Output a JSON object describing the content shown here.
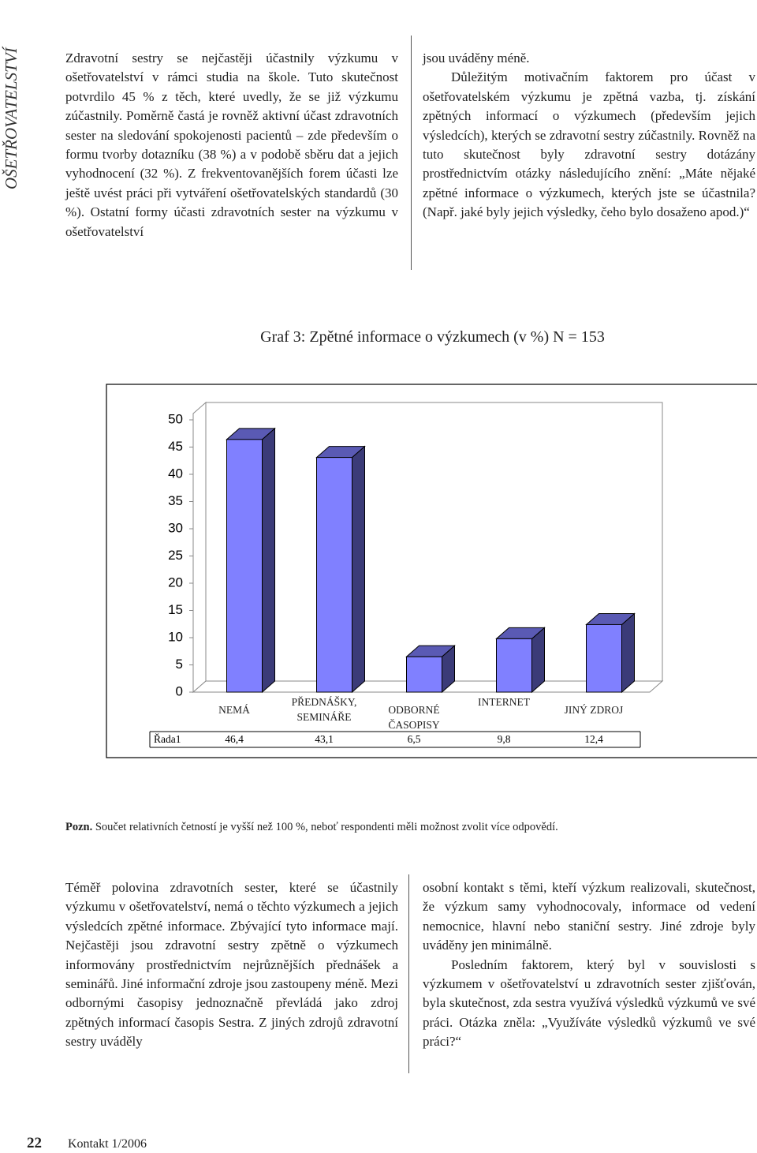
{
  "side_header": "OŠETŘOVATELSTVÍ",
  "top_left": [
    "Zdravotní sestry se nejčastěji účastnily výzkumu v ošetřovatelství v rámci studia na škole. Tuto skutečnost potvrdilo 45 % z těch, které uvedly, že se již výzkumu zúčastnily. Poměrně častá je rovněž aktivní účast zdravotních sester na sledování spokojenosti pacientů – zde především o formu tvorby dotazníku (38 %) a v podobě sběru dat a jejich vyhodnocení (32 %). Z frekventovanějších forem účasti lze ještě uvést práci při vytváření ošetřovatelských standardů (30 %). Ostatní formy účasti zdravotních sester na výzkumu v ošetřovatelství"
  ],
  "top_right": [
    "jsou uváděny méně.",
    "Důležitým motivačním faktorem pro účast v ošetřovatelském výzkumu je zpětná vazba, tj. získání zpětných informací o výzkumech (především jejich výsledcích), kterých se zdravotní sestry zúčastnily. Rovněž na tuto skutečnost byly zdravotní sestry dotázány prostřednictvím otázky následujícího znění: „Máte nějaké zpětné informace o výzkumech, kterých jste se účastnila? (Např. jaké byly jejich výsledky, čeho bylo dosaženo apod.)“"
  ],
  "chart_data": {
    "type": "bar3d",
    "title": "Graf 3: Zpětné informace o výzkumech (v %) N = 153",
    "categories": [
      "NEMÁ",
      "PŘEDNÁŠKY, SEMINÁŘE",
      "ODBORNÉ ČASOPISY",
      "INTERNET",
      "JINÝ ZDROJ"
    ],
    "series": [
      {
        "name": "Řada1",
        "color": "#8080ff",
        "values": [
          46.4,
          43.1,
          6.5,
          9.8,
          12.4
        ],
        "value_labels": [
          "46,4",
          "43,1",
          "6,5",
          "9,8",
          "12,4"
        ]
      }
    ],
    "ylim": [
      0,
      50
    ],
    "yticks": [
      0,
      5,
      10,
      15,
      20,
      25,
      30,
      35,
      40,
      45,
      50
    ]
  },
  "note": {
    "label": "Pozn.",
    "text": "Součet relativních četností je vyšší než 100 %, neboť respondenti měli možnost zvolit více odpovědí."
  },
  "bottom_left": [
    "Téměř polovina zdravotních sester, které se účastnily výzkumu v ošetřovatelství, nemá o těchto výzkumech a jejich výsledcích zpětné informace. Zbývající tyto informace mají. Nejčastěji jsou zdravotní sestry zpětně o výzkumech informovány prostřednictvím nejrůznějších přednášek a seminářů. Jiné informační zdroje jsou zastoupeny méně. Mezi odbornými časopisy jednoznačně převládá jako zdroj zpětných informací časopis Sestra. Z jiných zdrojů zdravotní sestry uváděly"
  ],
  "bottom_right": [
    "osobní kontakt s těmi, kteří výzkum realizovali, skutečnost, že výzkum samy vyhodnocovaly, informace od vedení nemocnice, hlavní nebo staniční sestry. Jiné zdroje byly uváděny jen minimálně.",
    "Posledním faktorem, který byl v souvislosti s výzkumem v ošetřovatelství u zdravotních sester zjišťován, byla skutečnost, zda sestra využívá výsledků výzkumů ve své práci. Otázka zněla: „Využíváte výsledků výzkumů ve své práci?“"
  ],
  "footer": {
    "page": "22",
    "journal": "Kontakt 1/2006"
  }
}
